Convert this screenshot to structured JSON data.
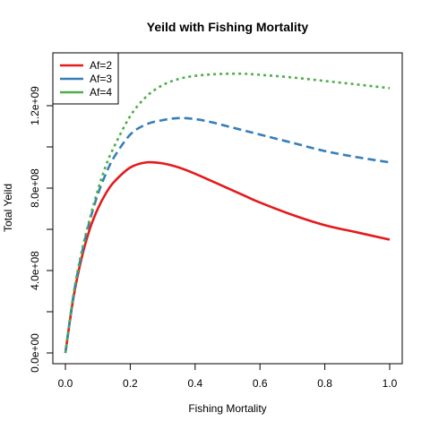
{
  "chart_data": {
    "type": "line",
    "title": "Yeild with Fishing Mortality",
    "xlabel": "Fishing Mortality",
    "ylabel": "Total Yeild",
    "xlim": [
      0,
      1
    ],
    "ylim": [
      0,
      1400000000
    ],
    "xticks": [
      0,
      0.2,
      0.4,
      0.6,
      0.8,
      1
    ],
    "xtick_labels": [
      "0.0",
      "0.2",
      "0.4",
      "0.6",
      "0.8",
      "1.0"
    ],
    "yticks": [
      0,
      200000000,
      400000000,
      600000000,
      800000000,
      1000000000,
      1200000000
    ],
    "ytick_labels": [
      "0.0e+00",
      "",
      "4.0e+08",
      "",
      "8.0e+08",
      "",
      "1.2e+09"
    ],
    "legend_position": "top-left",
    "x": [
      0,
      0.025,
      0.05,
      0.075,
      0.1,
      0.125,
      0.15,
      0.2,
      0.25,
      0.3,
      0.35,
      0.4,
      0.45,
      0.5,
      0.55,
      0.6,
      0.7,
      0.8,
      0.9,
      1.0
    ],
    "series": [
      {
        "name": "Af=2",
        "color": "#e41a1c",
        "dash": "solid",
        "values": [
          0,
          270000000,
          460000000,
          600000000,
          700000000,
          775000000,
          830000000,
          900000000,
          925000000,
          920000000,
          900000000,
          870000000,
          835000000,
          800000000,
          765000000,
          730000000,
          670000000,
          620000000,
          585000000,
          550000000
        ]
      },
      {
        "name": "Af=3",
        "color": "#377eb8",
        "dash": "dashed",
        "values": [
          0,
          280000000,
          480000000,
          640000000,
          770000000,
          870000000,
          950000000,
          1060000000,
          1110000000,
          1130000000,
          1140000000,
          1135000000,
          1120000000,
          1100000000,
          1080000000,
          1060000000,
          1020000000,
          980000000,
          950000000,
          925000000
        ]
      },
      {
        "name": "Af=4",
        "color": "#4daf4a",
        "dash": "dotted",
        "values": [
          0,
          285000000,
          490000000,
          650000000,
          790000000,
          910000000,
          1000000000,
          1150000000,
          1245000000,
          1300000000,
          1330000000,
          1345000000,
          1352000000,
          1355000000,
          1355000000,
          1350000000,
          1337000000,
          1320000000,
          1303000000,
          1285000000
        ]
      }
    ]
  }
}
